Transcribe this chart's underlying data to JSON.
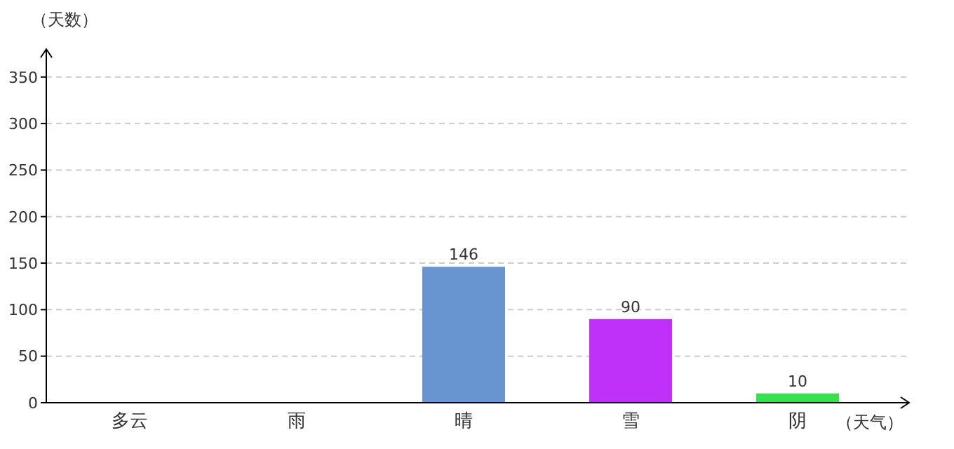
{
  "chart_data": {
    "type": "bar",
    "xlabel": "（天气）",
    "ylabel": "（天数）",
    "categories": [
      "多云",
      "雨",
      "晴",
      "雪",
      "阴"
    ],
    "values": [
      null,
      null,
      146,
      90,
      10
    ],
    "colors": [
      "#88f8d0",
      "#cc0044",
      "#6895d0",
      "#bf30f8",
      "#38e050"
    ],
    "ylim": [
      0,
      380
    ],
    "yticks": [
      0,
      50,
      100,
      150,
      200,
      250,
      300,
      350
    ],
    "grid": "y",
    "data_labels": true
  }
}
